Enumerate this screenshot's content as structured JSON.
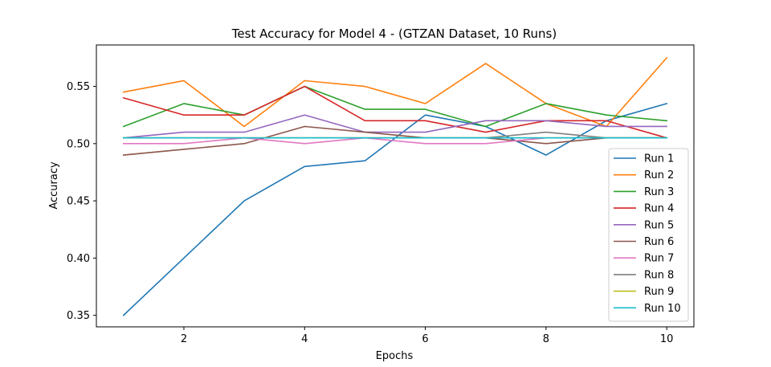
{
  "chart_data": {
    "type": "line",
    "title": "Test Accuracy for Model 4 - (GTZAN Dataset, 10 Runs)",
    "xlabel": "Epochs",
    "ylabel": "Accuracy",
    "xlim": [
      0.55,
      10.45
    ],
    "ylim": [
      0.3399,
      0.5862
    ],
    "x_ticks": [
      2,
      4,
      6,
      8,
      10
    ],
    "y_ticks": [
      0.35,
      0.4,
      0.45,
      0.5,
      0.55
    ],
    "y_tick_labels": [
      "0.35",
      "0.40",
      "0.45",
      "0.50",
      "0.55"
    ],
    "legend_position": "lower-right",
    "x": [
      1,
      2,
      3,
      4,
      5,
      6,
      7,
      8,
      9,
      10
    ],
    "series": [
      {
        "name": "Run 1",
        "color": "#1f77b4",
        "values": [
          0.35,
          0.4,
          0.45,
          0.48,
          0.485,
          0.525,
          0.515,
          0.49,
          0.52,
          0.535
        ]
      },
      {
        "name": "Run 2",
        "color": "#ff7f0e",
        "values": [
          0.545,
          0.555,
          0.515,
          0.555,
          0.55,
          0.535,
          0.57,
          0.535,
          0.515,
          0.575
        ]
      },
      {
        "name": "Run 3",
        "color": "#2ca02c",
        "values": [
          0.515,
          0.535,
          0.525,
          0.55,
          0.53,
          0.53,
          0.515,
          0.535,
          0.525,
          0.52
        ]
      },
      {
        "name": "Run 4",
        "color": "#d62728",
        "values": [
          0.54,
          0.525,
          0.525,
          0.55,
          0.52,
          0.52,
          0.51,
          0.52,
          0.52,
          0.505
        ]
      },
      {
        "name": "Run 5",
        "color": "#9467bd",
        "values": [
          0.505,
          0.51,
          0.51,
          0.525,
          0.51,
          0.51,
          0.52,
          0.52,
          0.515,
          0.515
        ]
      },
      {
        "name": "Run 6",
        "color": "#8c564b",
        "values": [
          0.49,
          0.495,
          0.5,
          0.515,
          0.51,
          0.505,
          0.505,
          0.5,
          0.505,
          0.505
        ]
      },
      {
        "name": "Run 7",
        "color": "#e377c2",
        "values": [
          0.5,
          0.5,
          0.505,
          0.5,
          0.505,
          0.5,
          0.5,
          0.505,
          0.505,
          0.505
        ]
      },
      {
        "name": "Run 8",
        "color": "#7f7f7f",
        "values": [
          0.505,
          0.505,
          0.505,
          0.505,
          0.505,
          0.505,
          0.505,
          0.51,
          0.505,
          0.505
        ]
      },
      {
        "name": "Run 9",
        "color": "#bcbd22",
        "values": [
          0.505,
          0.505,
          0.505,
          0.505,
          0.505,
          0.505,
          0.505,
          0.505,
          0.505,
          0.505
        ]
      },
      {
        "name": "Run 10",
        "color": "#17becf",
        "values": [
          0.505,
          0.505,
          0.505,
          0.505,
          0.505,
          0.505,
          0.505,
          0.505,
          0.505,
          0.505
        ]
      }
    ]
  }
}
